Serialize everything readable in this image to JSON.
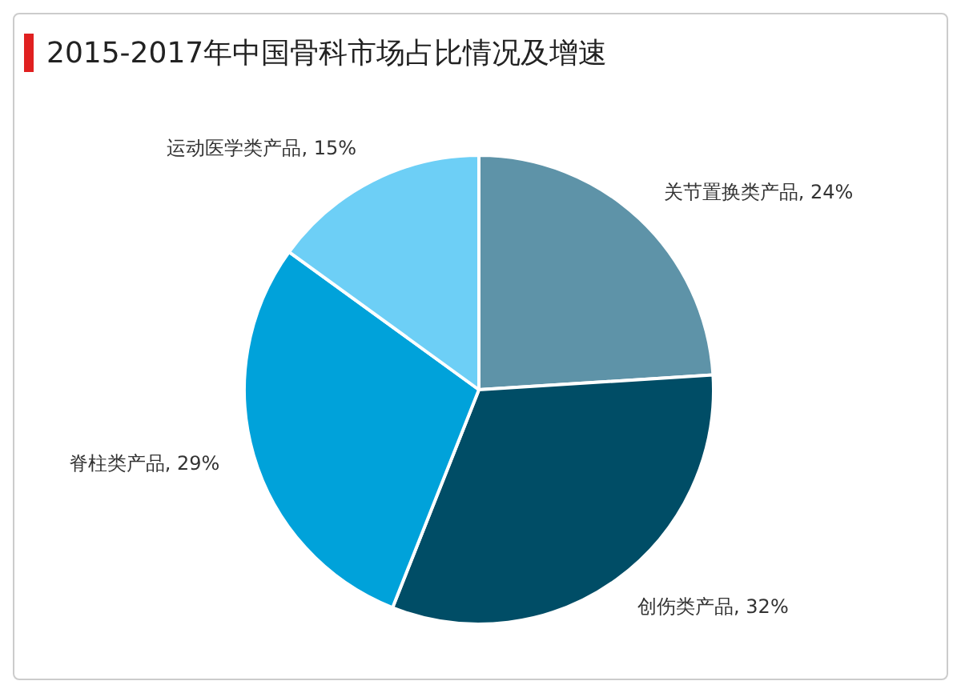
{
  "chart_data": {
    "type": "pie",
    "title": "2015-2017年中国骨科市场占比情况及增速",
    "categories": [
      "关节置换类产品",
      "创伤类产品",
      "脊柱类产品",
      "运动医学类产品"
    ],
    "values": [
      24,
      32,
      29,
      15
    ],
    "value_labels": [
      "24%",
      "32%",
      "29%",
      "15%"
    ],
    "colors": [
      "#5e93a8",
      "#004d66",
      "#00a2da",
      "#6dcff6"
    ],
    "legend": false
  }
}
